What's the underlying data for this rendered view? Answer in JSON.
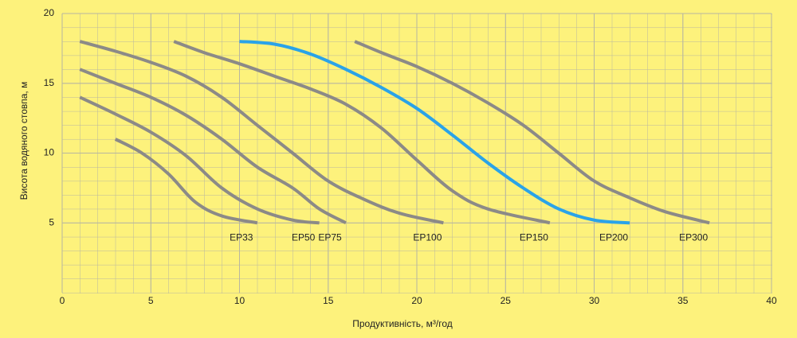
{
  "chart_data": {
    "type": "line",
    "x_label": "Продуктивність, м³/год",
    "y_label": "Висота водяного стовпа, м",
    "xlim": [
      0,
      40
    ],
    "ylim": [
      0,
      20
    ],
    "xticks": [
      0,
      5,
      10,
      15,
      20,
      25,
      30,
      35,
      40
    ],
    "yticks": [
      5,
      10,
      15,
      20
    ],
    "grid": true,
    "series": [
      {
        "name": "EP33",
        "color": "#8c8a87",
        "x": [
          3,
          4.5,
          6,
          7.5,
          9,
          11
        ],
        "values": [
          11,
          10,
          8.5,
          6.5,
          5.5,
          5
        ]
      },
      {
        "name": "EP50",
        "color": "#8c8a87",
        "x": [
          1,
          3,
          5,
          7,
          9,
          11,
          13,
          14.5
        ],
        "values": [
          14,
          12.8,
          11.5,
          9.8,
          7.5,
          6,
          5.2,
          5
        ]
      },
      {
        "name": "EP75",
        "color": "#8c8a87",
        "x": [
          1,
          3,
          5,
          7,
          9,
          11,
          13,
          14.5,
          16
        ],
        "values": [
          16,
          15,
          14,
          12.7,
          11,
          9,
          7.5,
          6,
          5
        ]
      },
      {
        "name": "EP100",
        "color": "#8c8a87",
        "x": [
          1,
          3,
          5,
          7,
          9,
          11,
          13,
          15,
          17,
          19,
          21.5
        ],
        "values": [
          18,
          17.3,
          16.5,
          15.5,
          14,
          12,
          10,
          8,
          6.7,
          5.7,
          5
        ]
      },
      {
        "name": "EP150",
        "color": "#8c8a87",
        "x": [
          6.3,
          8,
          10,
          12,
          14,
          16,
          18,
          20,
          22,
          24,
          27.5
        ],
        "values": [
          18,
          17.2,
          16.4,
          15.5,
          14.6,
          13.5,
          11.8,
          9.5,
          7.3,
          6,
          5
        ]
      },
      {
        "name": "EP200",
        "color": "#2aa3e8",
        "x": [
          10,
          12,
          14,
          16,
          18,
          20,
          22,
          24,
          26,
          28,
          30,
          32
        ],
        "values": [
          18,
          17.8,
          17.1,
          16,
          14.7,
          13.2,
          11.3,
          9.3,
          7.5,
          6,
          5.2,
          5
        ]
      },
      {
        "name": "EP300",
        "color": "#8c8a87",
        "x": [
          16.5,
          18,
          20,
          22,
          24,
          26,
          28,
          30,
          32,
          34,
          36.5
        ],
        "values": [
          18,
          17.2,
          16.2,
          15,
          13.6,
          12,
          10,
          8,
          6.8,
          5.8,
          5
        ]
      }
    ]
  }
}
